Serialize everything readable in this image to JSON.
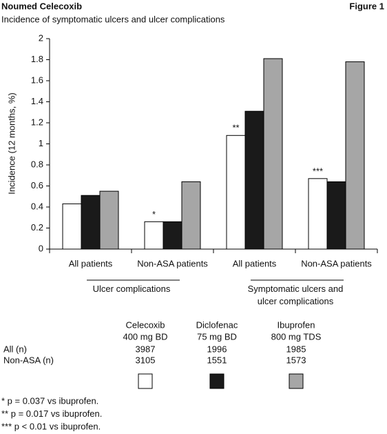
{
  "header": {
    "brand": "Noumed Celecoxib",
    "figure": "Figure 1"
  },
  "chart_data": {
    "type": "bar",
    "title": "Incidence of symptomatic ulcers and ulcer complications",
    "y_label": "Incidence (12 months, %)",
    "categories": [
      "All patients",
      "Non-ASA patients",
      "All patients",
      "Non-ASA patients"
    ],
    "groups": [
      "Ulcer complications",
      "Symptomatic ulcers and ulcer complications"
    ],
    "series": [
      {
        "name": "Celecoxib",
        "dose": "400 mg BD",
        "color": "#ffffff",
        "values": [
          0.43,
          0.26,
          1.08,
          0.67
        ],
        "annotations": [
          null,
          "*",
          "**",
          "***"
        ]
      },
      {
        "name": "Diclofenac",
        "dose": "75 mg BD",
        "color": "#1a1a1a",
        "values": [
          0.51,
          0.26,
          1.31,
          0.64
        ]
      },
      {
        "name": "Ibuprofen",
        "dose": "800 mg TDS",
        "color": "#a6a6a6",
        "values": [
          0.55,
          0.64,
          1.81,
          1.78
        ]
      }
    ],
    "ylim": [
      0,
      2
    ],
    "yticks": [
      0,
      0.2,
      0.4,
      0.6,
      0.8,
      1,
      1.2,
      1.4,
      1.6,
      1.8,
      2
    ],
    "table": {
      "rows": [
        {
          "label": "All (n)",
          "values": [
            3987,
            1996,
            1985
          ]
        },
        {
          "label": "Non-ASA (n)",
          "values": [
            3105,
            1551,
            1573
          ]
        }
      ]
    }
  },
  "footnotes": [
    "* p = 0.037 vs ibuprofen.",
    "** p = 0.017 vs ibuprofen.",
    "*** p < 0.01 vs ibuprofen."
  ]
}
